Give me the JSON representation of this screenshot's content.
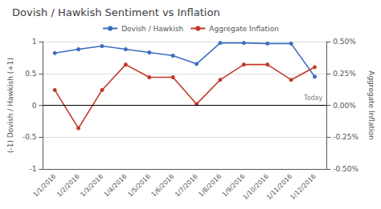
{
  "chart_data": {
    "type": "line",
    "title": "Dovish / Hawkish Sentiment vs Inflation",
    "categories": [
      "1/1/2016",
      "1/2/2016",
      "1/3/2016",
      "1/4/2016",
      "1/5/2016",
      "1/6/2016",
      "1/7/2016",
      "1/8/2016",
      "1/9/2016",
      "1/10/2016",
      "1/11/2016",
      "1/12/2016"
    ],
    "series": [
      {
        "name": "Dovish / Hawkish",
        "color": "#3C6EBF",
        "marker": "circle",
        "axis": "y",
        "values": [
          0.82,
          0.88,
          0.93,
          0.88,
          0.83,
          0.78,
          0.65,
          0.98,
          0.98,
          0.97,
          0.97,
          0.45
        ]
      },
      {
        "name": "Aggregate Inflation",
        "color": "#C0392B",
        "marker": "circle",
        "axis": "y2",
        "values": [
          0.12,
          -0.18,
          0.12,
          0.32,
          0.22,
          0.22,
          0.01,
          0.2,
          0.32,
          0.32,
          0.2,
          0.3
        ]
      }
    ],
    "ylabel": "(-1) Dovish / Hawkish (+1)",
    "y2label": "Aggregate Inflation",
    "ylim": [
      -1.0,
      1.0
    ],
    "yticks": [
      -1,
      -0.5,
      0,
      0.5,
      1
    ],
    "y2lim": [
      -0.5,
      0.5
    ],
    "y2ticks": [
      {
        "value": -0.5,
        "label": "-0.50%"
      },
      {
        "value": -0.25,
        "label": "-0.25%"
      },
      {
        "value": 0,
        "label": "0.00%"
      },
      {
        "value": 0.25,
        "label": "0.25%"
      },
      {
        "value": 0.5,
        "label": "0.50%"
      }
    ],
    "annotations": [
      {
        "text": "Today",
        "y": 0
      }
    ],
    "grid": true,
    "legend": "top"
  }
}
